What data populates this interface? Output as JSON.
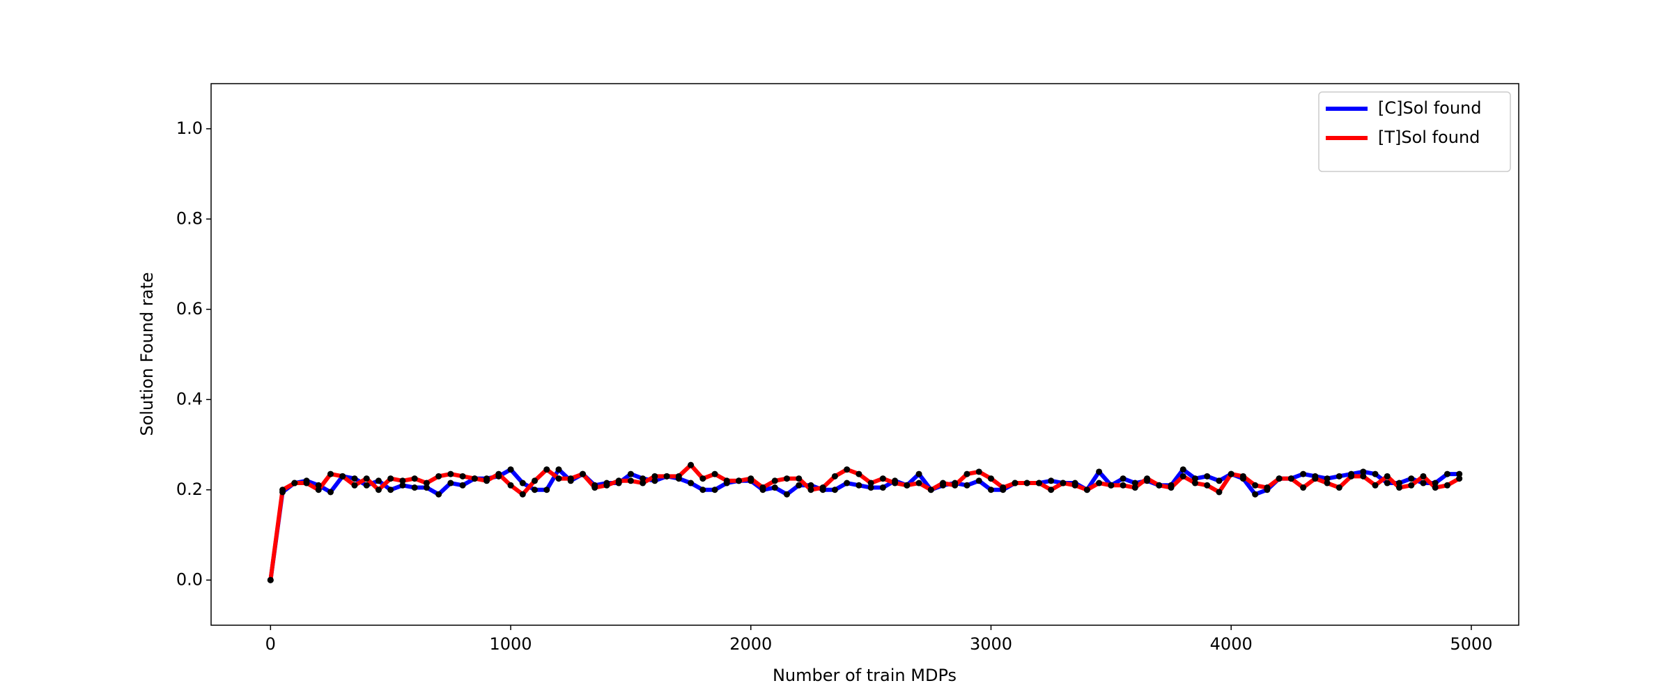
{
  "chart_data": {
    "type": "line",
    "xlabel": "Number of train MDPs",
    "ylabel": "Solution Found rate",
    "x": [
      0,
      50,
      100,
      150,
      200,
      250,
      300,
      350,
      400,
      450,
      500,
      550,
      600,
      650,
      700,
      750,
      800,
      850,
      900,
      950,
      1000,
      1050,
      1100,
      1150,
      1200,
      1250,
      1300,
      1350,
      1400,
      1450,
      1500,
      1550,
      1600,
      1650,
      1700,
      1750,
      1800,
      1850,
      1900,
      1950,
      2000,
      2050,
      2100,
      2150,
      2200,
      2250,
      2300,
      2350,
      2400,
      2450,
      2500,
      2550,
      2600,
      2650,
      2700,
      2750,
      2800,
      2850,
      2900,
      2950,
      3000,
      3050,
      3100,
      3150,
      3200,
      3250,
      3300,
      3350,
      3400,
      3450,
      3500,
      3550,
      3600,
      3650,
      3700,
      3750,
      3800,
      3850,
      3900,
      3950,
      4000,
      4050,
      4100,
      4150,
      4200,
      4250,
      4300,
      4350,
      4400,
      4450,
      4500,
      4550,
      4600,
      4650,
      4700,
      4750,
      4800,
      4850,
      4900,
      4950
    ],
    "series": [
      {
        "name": "[C]Sol found",
        "color": "#0000ff",
        "values": [
          0,
          0.195,
          0.215,
          0.22,
          0.21,
          0.195,
          0.23,
          0.225,
          0.21,
          0.22,
          0.2,
          0.21,
          0.205,
          0.205,
          0.19,
          0.215,
          0.21,
          0.225,
          0.225,
          0.23,
          0.245,
          0.215,
          0.2,
          0.2,
          0.245,
          0.22,
          0.235,
          0.21,
          0.215,
          0.215,
          0.235,
          0.225,
          0.22,
          0.23,
          0.225,
          0.215,
          0.2,
          0.2,
          0.215,
          0.22,
          0.22,
          0.2,
          0.205,
          0.19,
          0.21,
          0.21,
          0.2,
          0.2,
          0.215,
          0.21,
          0.205,
          0.205,
          0.22,
          0.21,
          0.235,
          0.2,
          0.21,
          0.215,
          0.21,
          0.22,
          0.2,
          0.2,
          0.215,
          0.215,
          0.215,
          0.22,
          0.215,
          0.215,
          0.2,
          0.24,
          0.21,
          0.225,
          0.215,
          0.22,
          0.21,
          0.21,
          0.245,
          0.225,
          0.23,
          0.22,
          0.235,
          0.225,
          0.19,
          0.2,
          0.225,
          0.225,
          0.235,
          0.23,
          0.225,
          0.23,
          0.235,
          0.24,
          0.235,
          0.215,
          0.215,
          0.225,
          0.215,
          0.215,
          0.235,
          0.235
        ]
      },
      {
        "name": "[T]Sol found",
        "color": "#ff0000",
        "values": [
          0,
          0.2,
          0.215,
          0.215,
          0.2,
          0.235,
          0.23,
          0.21,
          0.225,
          0.2,
          0.225,
          0.22,
          0.225,
          0.215,
          0.23,
          0.235,
          0.23,
          0.225,
          0.22,
          0.235,
          0.21,
          0.19,
          0.22,
          0.245,
          0.225,
          0.225,
          0.235,
          0.205,
          0.21,
          0.22,
          0.22,
          0.215,
          0.23,
          0.23,
          0.23,
          0.255,
          0.225,
          0.235,
          0.22,
          0.22,
          0.225,
          0.205,
          0.22,
          0.225,
          0.225,
          0.2,
          0.205,
          0.23,
          0.245,
          0.235,
          0.215,
          0.225,
          0.215,
          0.21,
          0.215,
          0.2,
          0.215,
          0.21,
          0.235,
          0.24,
          0.225,
          0.205,
          0.215,
          0.215,
          0.215,
          0.2,
          0.215,
          0.21,
          0.2,
          0.215,
          0.21,
          0.21,
          0.205,
          0.225,
          0.21,
          0.205,
          0.23,
          0.215,
          0.21,
          0.195,
          0.235,
          0.23,
          0.21,
          0.205,
          0.225,
          0.225,
          0.205,
          0.225,
          0.215,
          0.205,
          0.23,
          0.23,
          0.21,
          0.23,
          0.205,
          0.21,
          0.23,
          0.205,
          0.21,
          0.225
        ]
      }
    ],
    "marker_color": "#000000",
    "xlim": [
      -247.5,
      5197.5
    ],
    "ylim": [
      -0.1,
      1.1
    ],
    "xticks": [
      0,
      1000,
      2000,
      3000,
      4000,
      5000
    ],
    "yticks": [
      {
        "value": 0,
        "label": "0.0"
      },
      0.2,
      0.4,
      0.6,
      0.8,
      {
        "value": 1,
        "label": "1.0"
      }
    ],
    "legend": "upper right"
  }
}
